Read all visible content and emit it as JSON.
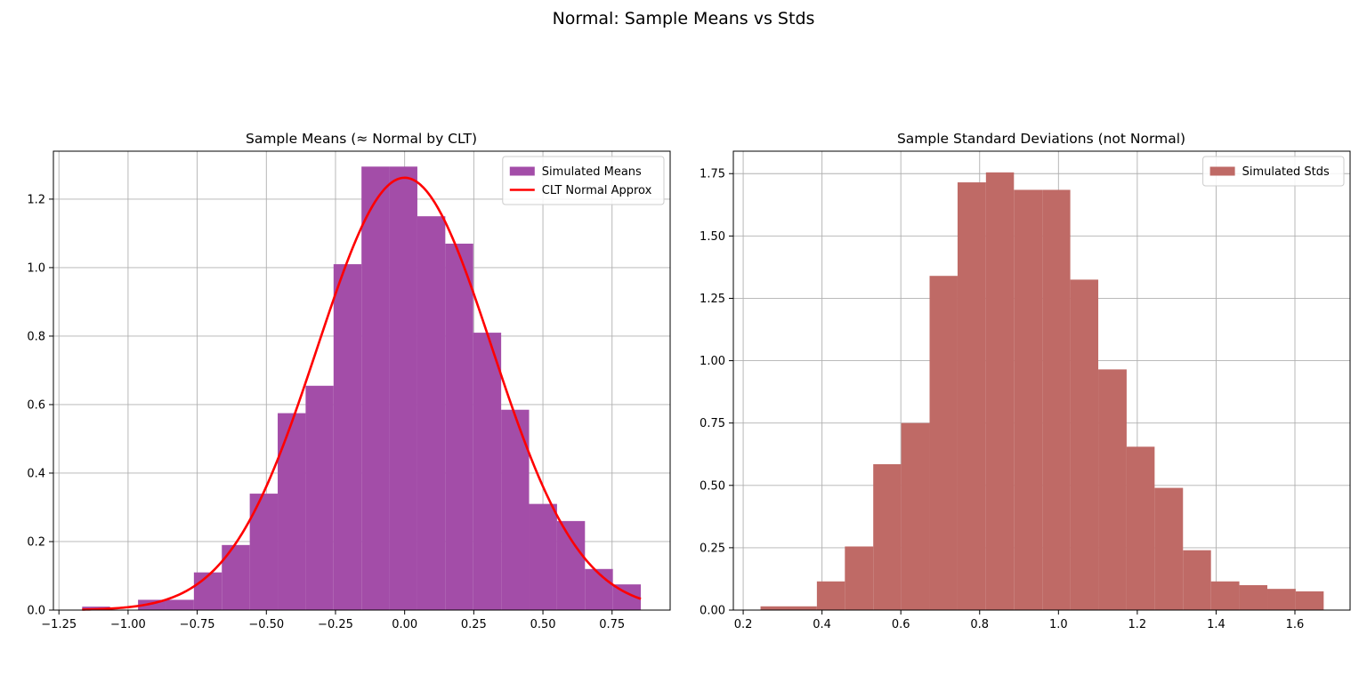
{
  "figure": {
    "suptitle": "Normal: Sample Means vs Stds"
  },
  "chart_data": [
    {
      "type": "bar",
      "title": "Sample Means (≈ Normal by CLT)",
      "xlabel": "",
      "ylabel": "",
      "xlim": [
        -1.27,
        0.96
      ],
      "ylim": [
        0,
        1.34
      ],
      "xticks": [
        -1.25,
        -1.0,
        -0.75,
        -0.5,
        -0.25,
        0.0,
        0.25,
        0.5,
        0.75
      ],
      "xtick_labels": [
        "−1.25",
        "−1.00",
        "−0.75",
        "−0.50",
        "−0.25",
        "0.00",
        "0.25",
        "0.50",
        "0.75"
      ],
      "yticks": [
        0.0,
        0.2,
        0.4,
        0.6,
        0.8,
        1.0,
        1.2
      ],
      "ytick_labels": [
        "0.0",
        "0.2",
        "0.4",
        "0.6",
        "0.8",
        "1.0",
        "1.2"
      ],
      "grid": true,
      "legend_position": "top-right",
      "bin_edges": [
        -1.166,
        -1.065,
        -0.964,
        -0.863,
        -0.762,
        -0.661,
        -0.56,
        -0.459,
        -0.358,
        -0.257,
        -0.156,
        -0.055,
        0.046,
        0.147,
        0.248,
        0.349,
        0.45,
        0.551,
        0.652,
        0.753,
        0.854
      ],
      "series": [
        {
          "name": "Simulated Means",
          "kind": "histogram",
          "color": "#a34da8",
          "values": [
            0.01,
            0.0,
            0.03,
            0.03,
            0.11,
            0.19,
            0.34,
            0.575,
            0.655,
            1.01,
            1.295,
            1.295,
            1.15,
            1.07,
            0.81,
            0.585,
            0.31,
            0.26,
            0.12,
            0.075
          ]
        },
        {
          "name": "CLT Normal Approx",
          "kind": "line",
          "color": "#ff0000",
          "mean": 0.0,
          "std": 0.316,
          "x_range": [
            -1.166,
            0.854
          ]
        }
      ]
    },
    {
      "type": "bar",
      "title": "Sample Standard Deviations (not Normal)",
      "xlabel": "",
      "ylabel": "",
      "xlim": [
        0.175,
        1.74
      ],
      "ylim": [
        0,
        1.84
      ],
      "xticks": [
        0.2,
        0.4,
        0.6,
        0.8,
        1.0,
        1.2,
        1.4,
        1.6
      ],
      "xtick_labels": [
        "0.2",
        "0.4",
        "0.6",
        "0.8",
        "1.0",
        "1.2",
        "1.4",
        "1.6"
      ],
      "yticks": [
        0.0,
        0.25,
        0.5,
        0.75,
        1.0,
        1.25,
        1.5,
        1.75
      ],
      "ytick_labels": [
        "0.00",
        "0.25",
        "0.50",
        "0.75",
        "1.00",
        "1.25",
        "1.50",
        "1.75"
      ],
      "grid": true,
      "legend_position": "top-right",
      "bin_edges": [
        0.244,
        0.315,
        0.387,
        0.458,
        0.53,
        0.601,
        0.673,
        0.744,
        0.816,
        0.887,
        0.959,
        1.03,
        1.101,
        1.173,
        1.244,
        1.316,
        1.387,
        1.459,
        1.53,
        1.602,
        1.673
      ],
      "series": [
        {
          "name": "Simulated Stds",
          "kind": "histogram",
          "color": "#bf6a66",
          "values": [
            0.015,
            0.015,
            0.115,
            0.255,
            0.585,
            0.75,
            1.34,
            1.715,
            1.755,
            1.685,
            1.685,
            1.325,
            0.965,
            0.655,
            0.49,
            0.24,
            0.115,
            0.1,
            0.085,
            0.075
          ]
        }
      ]
    }
  ]
}
